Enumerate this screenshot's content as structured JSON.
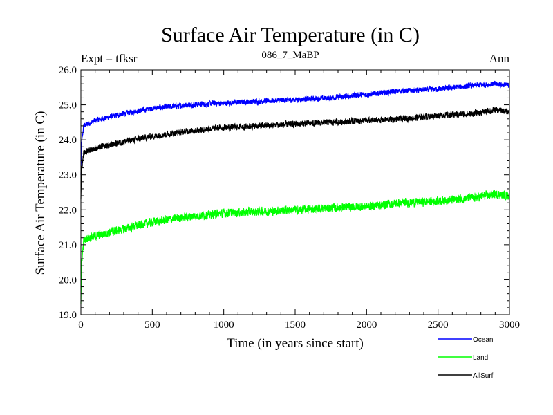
{
  "chart_data": {
    "type": "line",
    "title": "Surface Air Temperature (in C)",
    "subtitle": "086_7_MaBP",
    "left_label": "Expt = tfksr",
    "right_label": "Ann",
    "xlabel": "Time (in years since start)",
    "ylabel": "Surface Air Temperature (in C)",
    "xlim": [
      0,
      3000
    ],
    "ylim": [
      19.0,
      26.0
    ],
    "x_ticks": [
      0,
      500,
      1000,
      1500,
      2000,
      2500,
      3000
    ],
    "x_tick_labels": [
      "0",
      "500",
      "1000",
      "1500",
      "2000",
      "2500",
      "3000"
    ],
    "y_ticks": [
      19,
      20,
      21,
      22,
      23,
      24,
      25,
      26
    ],
    "y_tick_labels": [
      "19.0",
      "20.0",
      "21.0",
      "22.0",
      "23.0",
      "24.0",
      "25.0",
      "26.0"
    ],
    "grid": false,
    "legend_position": "bottom-right",
    "series": [
      {
        "name": "Ocean",
        "color": "#0000ff",
        "noise": 0.07,
        "x": [
          0,
          5,
          20,
          50,
          100,
          200,
          300,
          500,
          750,
          1000,
          1250,
          1500,
          1750,
          2000,
          2250,
          2500,
          2750,
          2900,
          3000
        ],
        "y": [
          23.0,
          23.9,
          24.4,
          24.45,
          24.55,
          24.65,
          24.75,
          24.9,
          25.0,
          25.05,
          25.1,
          25.15,
          25.2,
          25.3,
          25.4,
          25.45,
          25.55,
          25.6,
          25.55
        ]
      },
      {
        "name": "Land",
        "color": "#00ff00",
        "noise": 0.11,
        "x": [
          0,
          5,
          20,
          50,
          100,
          200,
          300,
          500,
          750,
          1000,
          1250,
          1500,
          1750,
          2000,
          2250,
          2500,
          2750,
          2900,
          3000
        ],
        "y": [
          19.3,
          20.5,
          21.1,
          21.2,
          21.25,
          21.35,
          21.45,
          21.65,
          21.8,
          21.9,
          21.95,
          22.0,
          22.05,
          22.1,
          22.2,
          22.25,
          22.35,
          22.45,
          22.4
        ]
      },
      {
        "name": "AllSurf",
        "color": "#000000",
        "noise": 0.08,
        "x": [
          0,
          5,
          20,
          50,
          100,
          200,
          300,
          500,
          750,
          1000,
          1250,
          1500,
          1750,
          2000,
          2250,
          2500,
          2750,
          2900,
          3000
        ],
        "y": [
          22.3,
          23.2,
          23.6,
          23.7,
          23.75,
          23.85,
          23.95,
          24.1,
          24.25,
          24.35,
          24.4,
          24.45,
          24.5,
          24.55,
          24.6,
          24.7,
          24.75,
          24.85,
          24.8
        ]
      }
    ]
  }
}
